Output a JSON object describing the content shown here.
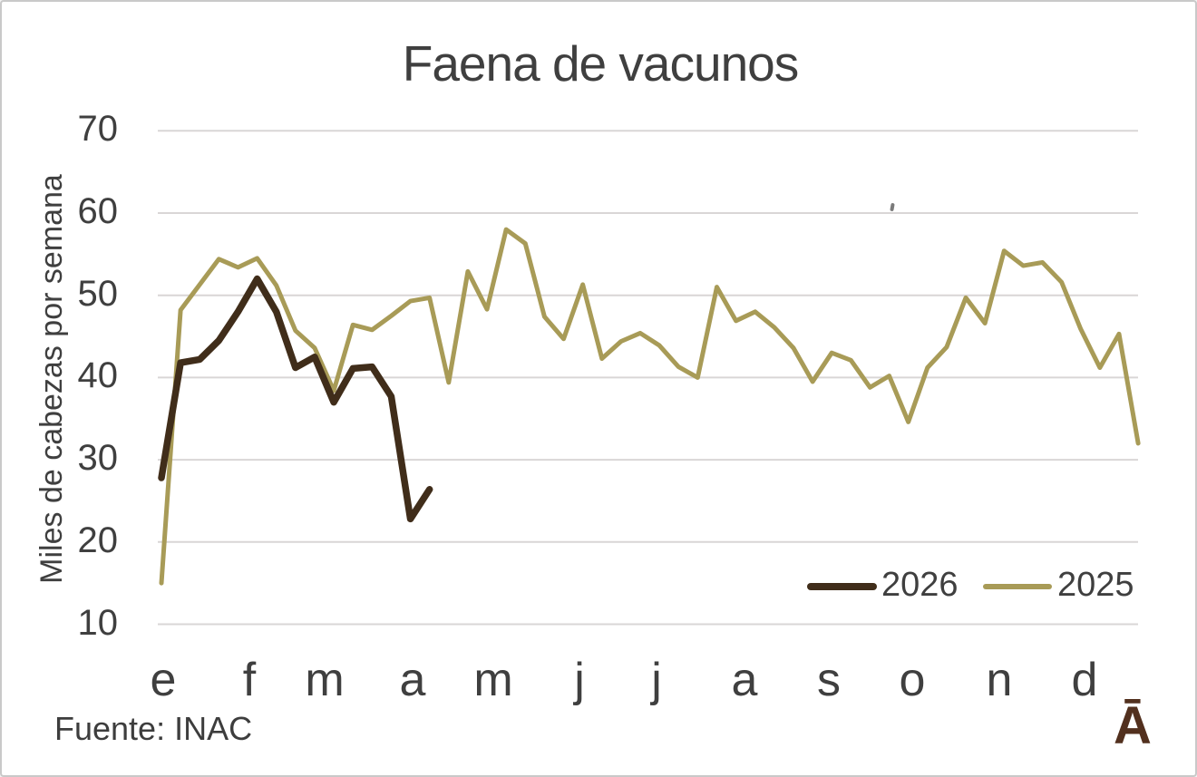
{
  "title": "Faena de vacunos",
  "y_axis_label": "Miles de cabezas por semana",
  "source": "Fuente: INAC",
  "logo": "Ā",
  "legend": [
    {
      "label": "2026",
      "color": "#402d1a"
    },
    {
      "label": "2025",
      "color": "#a89b57"
    }
  ],
  "colors": {
    "text": "#3f3f3f",
    "grid": "#d9d6d6",
    "frame_border": "#c9c9c9",
    "logo_brown": "#52301e",
    "series_2026": "#402d1a",
    "series_2025": "#a89b57"
  },
  "chart_data": {
    "type": "line",
    "title": "Faena de vacunos",
    "xlabel": "",
    "ylabel": "Miles de cabezas por semana",
    "x_unit": "week of year",
    "month_labels": [
      "e",
      "f",
      "m",
      "a",
      "m",
      "j",
      "j",
      "a",
      "s",
      "o",
      "n",
      "d"
    ],
    "ylim": [
      10,
      70
    ],
    "yticks": [
      70,
      60,
      50,
      40,
      30,
      20,
      10
    ],
    "grid": true,
    "legend_position": "inside-bottom-right",
    "series": [
      {
        "name": "2026",
        "color": "#402d1a",
        "stroke_width": 7.5,
        "values": [
          27.8,
          41.8,
          42.2,
          44.5,
          48,
          52,
          48,
          41.2,
          42.5,
          37,
          41.1,
          41.3,
          37.7,
          22.8,
          26.4
        ]
      },
      {
        "name": "2025",
        "color": "#a89b57",
        "stroke_width": 5,
        "values": [
          15,
          48.2,
          51.3,
          54.4,
          53.4,
          54.5,
          51.2,
          45.7,
          43.6,
          38.4,
          46.4,
          45.8,
          47.5,
          49.3,
          49.7,
          39.4,
          52.9,
          48.3,
          58,
          56.3,
          47.4,
          44.7,
          51.3,
          42.3,
          44.4,
          45.4,
          43.9,
          41.3,
          40,
          51,
          46.9,
          48,
          46.1,
          43.6,
          39.5,
          43,
          42.1,
          38.8,
          40.2,
          34.6,
          41.2,
          43.7,
          49.7,
          46.6,
          55.4,
          53.6,
          54,
          51.6,
          45.9,
          41.2,
          45.3,
          32
        ]
      }
    ]
  }
}
